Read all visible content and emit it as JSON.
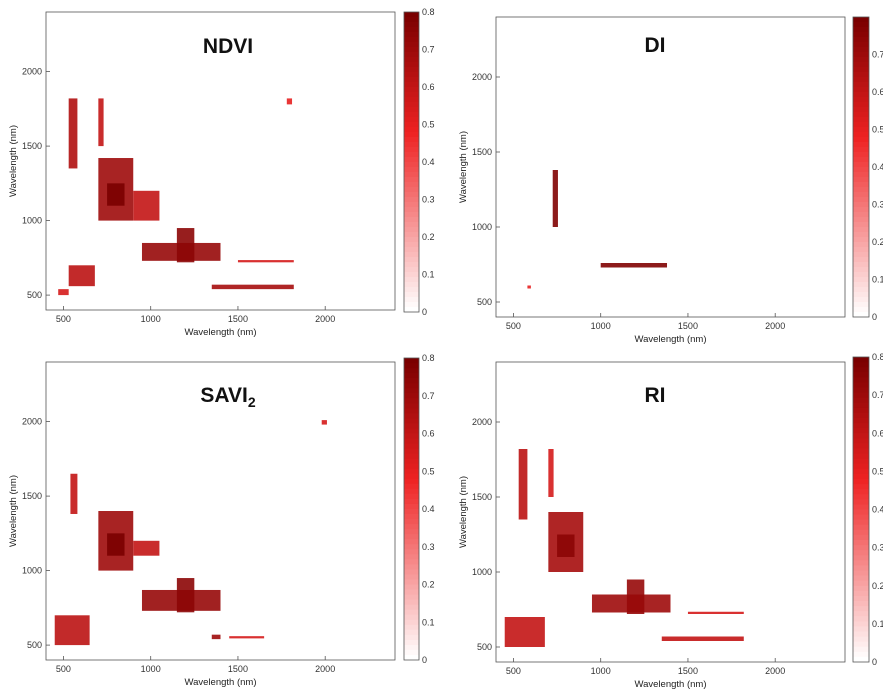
{
  "colors": {
    "heat_low": "#ffffff",
    "heat_mid": "#ee2222",
    "heat_high": "#7a0000",
    "axis": "#555555"
  },
  "chart_data": [
    {
      "type": "heatmap",
      "title": "NDVI",
      "subscript": "",
      "xlabel": "Wavelength (nm)",
      "ylabel": "Wavelength (nm)",
      "xlim": [
        400,
        2400
      ],
      "ylim": [
        400,
        2400
      ],
      "xticks": [
        500,
        1000,
        1500,
        2000
      ],
      "yticks": [
        500,
        1000,
        1500,
        2000
      ],
      "colorbar": {
        "range": [
          0,
          0.8
        ],
        "ticks": [
          "0",
          "0.1",
          "0.2",
          "0.3",
          "0.4",
          "0.5",
          "0.6",
          "0.7",
          "0.8"
        ]
      },
      "regions": [
        {
          "x": [
            530,
            580
          ],
          "y": [
            1350,
            1820
          ],
          "v": 0.65
        },
        {
          "x": [
            700,
            730
          ],
          "y": [
            1500,
            1820
          ],
          "v": 0.6
        },
        {
          "x": [
            700,
            900
          ],
          "y": [
            1000,
            1420
          ],
          "v": 0.7
        },
        {
          "x": [
            750,
            850
          ],
          "y": [
            1100,
            1250
          ],
          "v": 0.8
        },
        {
          "x": [
            900,
            1050
          ],
          "y": [
            1000,
            1200
          ],
          "v": 0.6
        },
        {
          "x": [
            950,
            1400
          ],
          "y": [
            730,
            850
          ],
          "v": 0.72
        },
        {
          "x": [
            1150,
            1250
          ],
          "y": [
            720,
            950
          ],
          "v": 0.75
        },
        {
          "x": [
            1350,
            1820
          ],
          "y": [
            540,
            570
          ],
          "v": 0.68
        },
        {
          "x": [
            1500,
            1820
          ],
          "y": [
            720,
            735
          ],
          "v": 0.55
        },
        {
          "x": [
            530,
            680
          ],
          "y": [
            560,
            700
          ],
          "v": 0.62
        },
        {
          "x": [
            470,
            530
          ],
          "y": [
            500,
            540
          ],
          "v": 0.55
        },
        {
          "x": [
            1780,
            1810
          ],
          "y": [
            1780,
            1820
          ],
          "v": 0.5
        }
      ]
    },
    {
      "type": "heatmap",
      "title": "DI",
      "subscript": "",
      "xlabel": "Wavelength (nm)",
      "ylabel": "Wavelength (nm)",
      "xlim": [
        400,
        2400
      ],
      "ylim": [
        400,
        2400
      ],
      "xticks": [
        500,
        1000,
        1500,
        2000
      ],
      "yticks": [
        500,
        1000,
        1500,
        2000
      ],
      "colorbar": {
        "range": [
          0,
          0.8
        ],
        "ticks": [
          "0",
          "0.1",
          "0.2",
          "0.3",
          "0.4",
          "0.5",
          "0.6",
          "0.7"
        ]
      },
      "regions": [
        {
          "x": [
            725,
            755
          ],
          "y": [
            1000,
            1380
          ],
          "v": 0.78
        },
        {
          "x": [
            1000,
            1380
          ],
          "y": [
            730,
            760
          ],
          "v": 0.78
        },
        {
          "x": [
            580,
            600
          ],
          "y": [
            590,
            610
          ],
          "v": 0.5
        }
      ]
    },
    {
      "type": "heatmap",
      "title": "SAVI",
      "subscript": "2",
      "xlabel": "Wavelength (nm)",
      "ylabel": "Wavelength (nm)",
      "xlim": [
        400,
        2400
      ],
      "ylim": [
        400,
        2400
      ],
      "xticks": [
        500,
        1000,
        1500,
        2000
      ],
      "yticks": [
        500,
        1000,
        1500,
        2000
      ],
      "colorbar": {
        "range": [
          0,
          0.8
        ],
        "ticks": [
          "0",
          "0.1",
          "0.2",
          "0.3",
          "0.4",
          "0.5",
          "0.6",
          "0.7",
          "0.8"
        ]
      },
      "regions": [
        {
          "x": [
            540,
            580
          ],
          "y": [
            1380,
            1650
          ],
          "v": 0.6
        },
        {
          "x": [
            700,
            900
          ],
          "y": [
            1000,
            1400
          ],
          "v": 0.7
        },
        {
          "x": [
            750,
            850
          ],
          "y": [
            1100,
            1250
          ],
          "v": 0.8
        },
        {
          "x": [
            900,
            1050
          ],
          "y": [
            1100,
            1200
          ],
          "v": 0.6
        },
        {
          "x": [
            950,
            1400
          ],
          "y": [
            730,
            870
          ],
          "v": 0.72
        },
        {
          "x": [
            1150,
            1250
          ],
          "y": [
            720,
            950
          ],
          "v": 0.75
        },
        {
          "x": [
            1350,
            1400
          ],
          "y": [
            540,
            570
          ],
          "v": 0.7
        },
        {
          "x": [
            1450,
            1650
          ],
          "y": [
            545,
            560
          ],
          "v": 0.55
        },
        {
          "x": [
            450,
            650
          ],
          "y": [
            500,
            700
          ],
          "v": 0.62
        },
        {
          "x": [
            1980,
            2010
          ],
          "y": [
            1980,
            2010
          ],
          "v": 0.55
        }
      ]
    },
    {
      "type": "heatmap",
      "title": "RI",
      "subscript": "",
      "xlabel": "Wavelength (nm)",
      "ylabel": "Wavelength (nm)",
      "xlim": [
        400,
        2400
      ],
      "ylim": [
        400,
        2400
      ],
      "xticks": [
        500,
        1000,
        1500,
        2000
      ],
      "yticks": [
        500,
        1000,
        1500,
        2000
      ],
      "colorbar": {
        "range": [
          0,
          0.8
        ],
        "ticks": [
          "0",
          "0.1",
          "0.2",
          "0.3",
          "0.4",
          "0.5",
          "0.6",
          "0.7",
          "0.8"
        ]
      },
      "regions": [
        {
          "x": [
            530,
            580
          ],
          "y": [
            1350,
            1820
          ],
          "v": 0.62
        },
        {
          "x": [
            700,
            730
          ],
          "y": [
            1500,
            1820
          ],
          "v": 0.55
        },
        {
          "x": [
            700,
            900
          ],
          "y": [
            1000,
            1400
          ],
          "v": 0.68
        },
        {
          "x": [
            750,
            850
          ],
          "y": [
            1100,
            1250
          ],
          "v": 0.75
        },
        {
          "x": [
            950,
            1400
          ],
          "y": [
            730,
            850
          ],
          "v": 0.7
        },
        {
          "x": [
            1150,
            1250
          ],
          "y": [
            720,
            950
          ],
          "v": 0.72
        },
        {
          "x": [
            1350,
            1820
          ],
          "y": [
            540,
            570
          ],
          "v": 0.6
        },
        {
          "x": [
            1500,
            1820
          ],
          "y": [
            720,
            735
          ],
          "v": 0.55
        },
        {
          "x": [
            450,
            680
          ],
          "y": [
            500,
            700
          ],
          "v": 0.6
        }
      ]
    }
  ]
}
